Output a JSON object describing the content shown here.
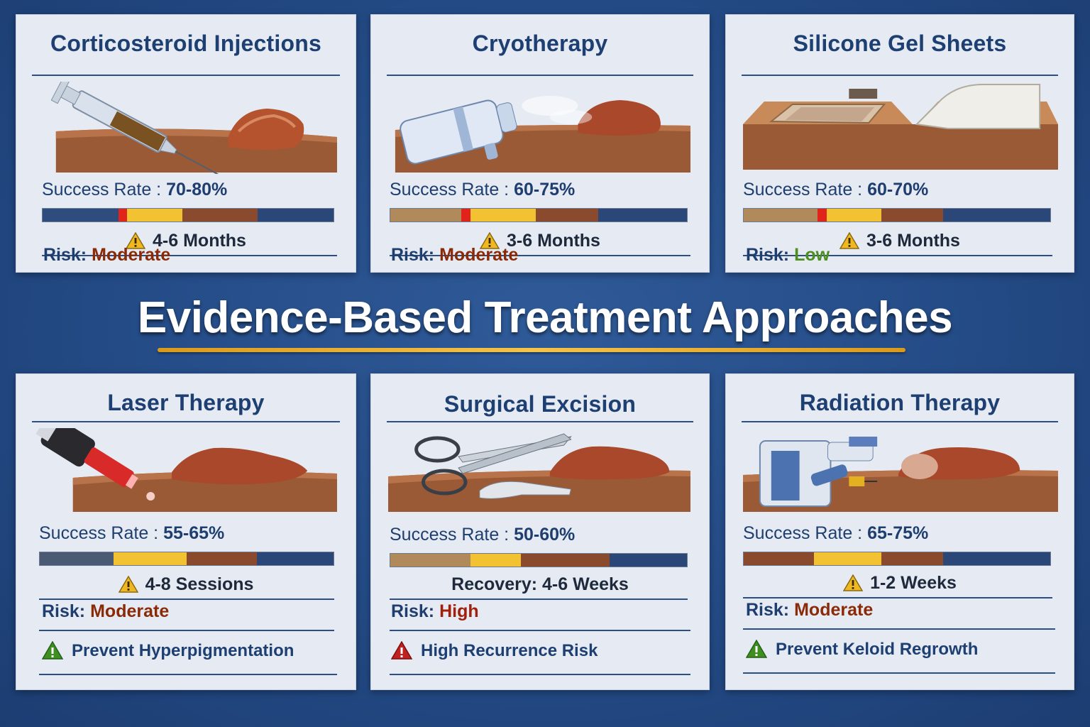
{
  "headline": "Evidence-Based Treatment Approaches",
  "colors": {
    "navy": "#2b4778",
    "gold": "#f2c233",
    "brown": "#8a4a2d",
    "red": "#e0241c",
    "tan": "#b08a5a",
    "warning_yellow": "#f0b820",
    "ok_green": "#3f8f1f",
    "danger_red": "#c02020"
  },
  "cards": [
    {
      "title": "Corticosteroid Injections",
      "illustration": "syringe-icon",
      "success_label": "Success Rate :",
      "success_rate": "70-80%",
      "duration": "4-6 Months",
      "duration_icon": "warning-icon",
      "risk_label": "Risk:",
      "risk_value": "Moderate"
    },
    {
      "title": "Cryotherapy",
      "illustration": "cryo-canister-icon",
      "success_label": "Success Rate :",
      "success_rate": "60-75%",
      "duration": "3-6 Months",
      "duration_icon": "warning-icon",
      "risk_label": "Risk:",
      "risk_value": "Moderate"
    },
    {
      "title": "Silicone Gel Sheets",
      "illustration": "gel-sheet-icon",
      "success_label": "Success Rate :",
      "success_rate": "60-70%",
      "duration": "3-6 Months",
      "duration_icon": "warning-icon",
      "risk_label": "Risk:",
      "risk_value": "Low"
    },
    {
      "title": "Laser Therapy",
      "illustration": "laser-device-icon",
      "success_label": "Success Rate :",
      "success_rate": "55-65%",
      "duration": "4-8 Sessions",
      "duration_icon": "warning-icon",
      "risk_label": "Risk:",
      "risk_value": "Moderate",
      "note": "Prevent Hyperpigmentation",
      "note_icon": "warning-green-icon"
    },
    {
      "title": "Surgical Excision",
      "illustration": "scissors-scalpel-icon",
      "success_label": "Success Rate :",
      "success_rate": "50-60%",
      "duration": "Recovery: 4-6 Weeks",
      "risk_label": "Risk:",
      "risk_value": "High",
      "note": "High Recurrence Risk",
      "note_icon": "warning-red-icon"
    },
    {
      "title": "Radiation Therapy",
      "illustration": "radiation-machine-icon",
      "success_label": "Success Rate :",
      "success_rate": "65-75%",
      "duration": "1-2 Weeks",
      "duration_icon": "warning-icon",
      "risk_label": "Risk:",
      "risk_value": "Moderate",
      "note": "Prevent Keloid Regrowth",
      "note_icon": "warning-green-icon"
    }
  ]
}
